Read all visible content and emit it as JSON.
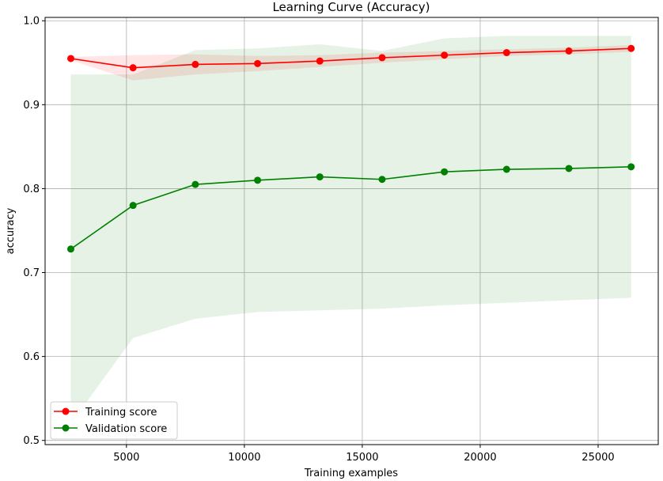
{
  "chart_data": {
    "type": "line",
    "title": "Learning Curve (Accuracy)",
    "xlabel": "Training examples",
    "ylabel": "accuracy",
    "xlim": [
      1550,
      27550
    ],
    "ylim": [
      0.495,
      1.004
    ],
    "grid": true,
    "legend_position": "lower-left",
    "x_ticks": [
      5000,
      10000,
      15000,
      20000,
      25000
    ],
    "x_tick_labels": [
      "5000",
      "10000",
      "15000",
      "20000",
      "25000"
    ],
    "y_ticks": [
      0.5,
      0.6,
      0.7,
      0.8,
      0.9,
      1.0
    ],
    "y_tick_labels": [
      "0.5",
      "0.6",
      "0.7",
      "0.8",
      "0.9",
      "1.0"
    ],
    "x": [
      2640,
      5280,
      7920,
      10560,
      13200,
      15840,
      18480,
      21120,
      23760,
      26400
    ],
    "series": [
      {
        "name": "Training score",
        "color": "#ff0000",
        "band_color": "#ff0000",
        "values": [
          0.955,
          0.944,
          0.948,
          0.949,
          0.952,
          0.956,
          0.959,
          0.962,
          0.964,
          0.967
        ],
        "band_lower": [
          0.953,
          0.929,
          0.936,
          0.94,
          0.945,
          0.95,
          0.954,
          0.958,
          0.96,
          0.963
        ],
        "band_upper": [
          0.957,
          0.959,
          0.96,
          0.958,
          0.959,
          0.962,
          0.964,
          0.966,
          0.968,
          0.971
        ]
      },
      {
        "name": "Validation score",
        "color": "#008000",
        "band_color": "#008000",
        "values": [
          0.728,
          0.78,
          0.805,
          0.81,
          0.814,
          0.811,
          0.82,
          0.823,
          0.824,
          0.826
        ],
        "band_lower": [
          0.52,
          0.622,
          0.645,
          0.653,
          0.655,
          0.657,
          0.661,
          0.664,
          0.667,
          0.67
        ],
        "band_upper": [
          0.936,
          0.936,
          0.965,
          0.967,
          0.972,
          0.964,
          0.979,
          0.982,
          0.982,
          0.982
        ]
      }
    ]
  }
}
